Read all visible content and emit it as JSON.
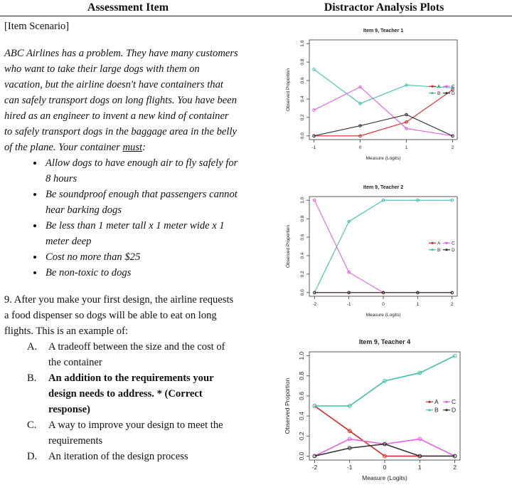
{
  "header": {
    "left": "Assessment Item",
    "right": "Distractor Analysis Plots"
  },
  "item": {
    "label": "[Item Scenario]",
    "scenario": {
      "text": "ABC Airlines has a problem. They have many customers who want to take their large dogs with them on vacation, but the airline doesn't have containers that can safely transport dogs on long flights. You have been hired as an engineer to invent a new kind of container to safely transport dogs in the baggage area in the belly of the plane. Your container ",
      "emphasis": "must",
      "after": ":"
    },
    "requirements": [
      "Allow dogs to have enough air to fly safely for 8 hours",
      "Be soundproof enough that passengers cannot hear barking dogs",
      "Be less than 1 meter tall x 1 meter wide x 1 meter deep",
      "Cost no more than $25",
      "Be non-toxic to dogs"
    ],
    "question": "9. After you make your first design, the airline requests a food dispenser so dogs will be able to eat on long flights. This is an example of:",
    "options": [
      {
        "letter": "A.",
        "text": "A tradeoff between the size and the cost of the container"
      },
      {
        "letter": "B.",
        "text": "An addition to the requirements your design needs to address. * (Correct response)"
      },
      {
        "letter": "C.",
        "text": "A way to improve your design to meet the requirements"
      },
      {
        "letter": "D.",
        "text": "An iteration of the design process"
      }
    ],
    "correct_option": 1
  },
  "chart_data": [
    {
      "type": "line",
      "title": "Item 9, Teacher 1",
      "x_label": "Measure (Logits)",
      "y_label": "Observed Proportion",
      "x": [
        -1,
        0,
        1,
        2
      ],
      "xlim": [
        -1.1,
        2.1
      ],
      "xticks": [
        -1,
        0,
        1,
        2
      ],
      "ylim": [
        -0.04,
        1.04
      ],
      "yticks": [
        {
          "value": 0,
          "label": "0.0"
        },
        {
          "value": 0.2,
          "label": "0.2"
        },
        {
          "value": 0.4,
          "label": "0.4"
        },
        {
          "value": 0.6,
          "label": "0.6"
        },
        {
          "value": 0.8,
          "label": "0.8"
        },
        {
          "value": 1,
          "label": "1.0"
        }
      ],
      "legend": "right",
      "series": [
        {
          "name": "A",
          "color": "#d62728",
          "values": [
            0,
            0,
            0.15,
            0.5
          ]
        },
        {
          "name": "B",
          "color": "#3fbfae",
          "values": [
            0.72,
            0.35,
            0.55,
            0.52
          ]
        },
        {
          "name": "C",
          "color": "#e060e0",
          "values": [
            0.28,
            0.53,
            0.08,
            0
          ]
        },
        {
          "name": "D",
          "color": "#333333",
          "values": [
            0,
            0.11,
            0.23,
            0
          ]
        }
      ]
    },
    {
      "type": "line",
      "title": "Item 9, Teacher 2",
      "x_label": "Measure (Logits)",
      "y_label": "Observed Proportion",
      "x": [
        -2,
        -1,
        0,
        1,
        2
      ],
      "xlim": [
        -2.15,
        2.15
      ],
      "xticks": [
        -2,
        -1,
        0,
        1,
        2
      ],
      "ylim": [
        -0.04,
        1.04
      ],
      "yticks": [
        {
          "value": 0,
          "label": "0.0"
        },
        {
          "value": 0.2,
          "label": "0.2"
        },
        {
          "value": 0.4,
          "label": "0.4"
        },
        {
          "value": 0.6,
          "label": "0.6"
        },
        {
          "value": 0.8,
          "label": "0.8"
        },
        {
          "value": 1,
          "label": "1.0"
        }
      ],
      "legend": "right",
      "series": [
        {
          "name": "A",
          "color": "#d62728",
          "values": [
            0,
            0,
            0,
            0,
            0
          ]
        },
        {
          "name": "B",
          "color": "#3fbfae",
          "values": [
            0,
            0.77,
            1,
            1,
            1
          ]
        },
        {
          "name": "C",
          "color": "#e060e0",
          "values": [
            1,
            0.22,
            0,
            0,
            0
          ]
        },
        {
          "name": "D",
          "color": "#333333",
          "values": [
            0,
            0,
            0,
            0,
            0
          ]
        }
      ]
    },
    {
      "type": "line",
      "title": "Item 9, Teacher 4",
      "x_label": "Measure (Logits)",
      "y_label": "Observed Proportion",
      "x": [
        -2,
        -1,
        0,
        1,
        2
      ],
      "xlim": [
        -2.15,
        2.15
      ],
      "xticks": [
        -2,
        -1,
        0,
        1,
        2
      ],
      "ylim": [
        -0.04,
        1.04
      ],
      "yticks": [
        {
          "value": 0,
          "label": "0.0"
        },
        {
          "value": 0.2,
          "label": "0.2"
        },
        {
          "value": 0.4,
          "label": "0.4"
        },
        {
          "value": 0.6,
          "label": "0.6"
        },
        {
          "value": 0.8,
          "label": "0.8"
        },
        {
          "value": 1,
          "label": "1.0"
        }
      ],
      "legend": "right",
      "series": [
        {
          "name": "A",
          "color": "#d62728",
          "values": [
            0.5,
            0.25,
            0,
            0,
            0
          ]
        },
        {
          "name": "B",
          "color": "#3fbfae",
          "values": [
            0.5,
            0.5,
            0.75,
            0.83,
            1
          ]
        },
        {
          "name": "C",
          "color": "#e060e0",
          "values": [
            0,
            0.17,
            0.12,
            0.17,
            0
          ]
        },
        {
          "name": "D",
          "color": "#333333",
          "values": [
            0,
            0.08,
            0.12,
            0,
            0
          ]
        }
      ]
    }
  ]
}
